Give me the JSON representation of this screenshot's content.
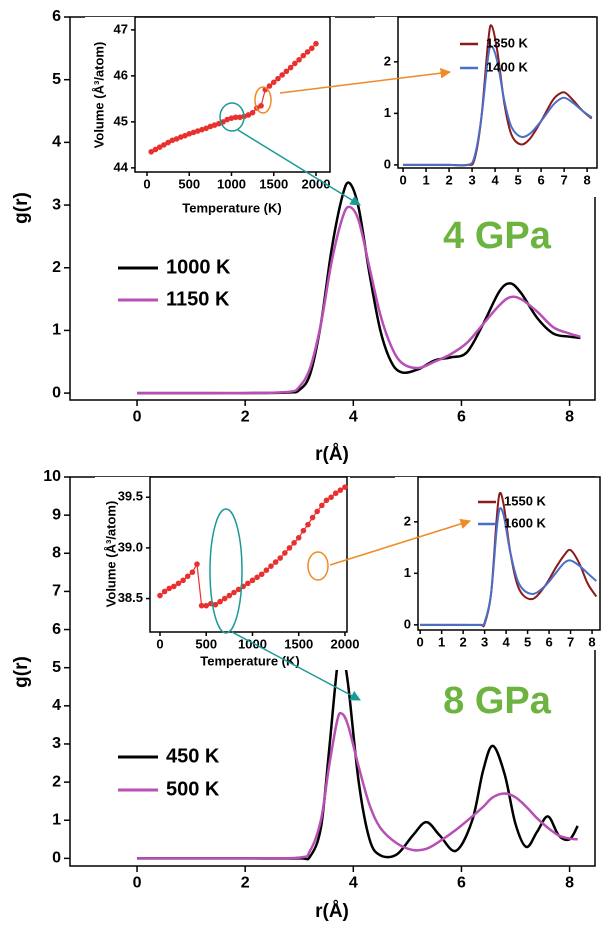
{
  "chart_data": [
    {
      "type": "line",
      "x_label": "r(Å)",
      "y_label": "g(r)",
      "legend": "center left",
      "annotation": "4 GPa",
      "annotation_color": "#6cb33f",
      "x": [
        0,
        1,
        2,
        2.8,
        3.0,
        3.2,
        3.4,
        3.6,
        3.8,
        3.93,
        4.1,
        4.3,
        4.5,
        4.7,
        4.9,
        5.2,
        5.5,
        5.8,
        6.1,
        6.4,
        6.7,
        6.9,
        7.1,
        7.4,
        7.7,
        8.0,
        8.2
      ],
      "series": [
        {
          "name": "1000 K",
          "color": "#000000",
          "values": [
            0,
            0,
            0,
            0.01,
            0.05,
            0.3,
            1.1,
            2.3,
            3.15,
            3.35,
            2.95,
            1.9,
            1.0,
            0.5,
            0.33,
            0.38,
            0.52,
            0.57,
            0.65,
            1.1,
            1.62,
            1.75,
            1.6,
            1.2,
            0.95,
            0.9,
            0.88
          ]
        },
        {
          "name": "1150 K",
          "color": "#b84fb5",
          "values": [
            0,
            0,
            0,
            0.02,
            0.1,
            0.4,
            1.1,
            2.1,
            2.8,
            2.97,
            2.75,
            2.0,
            1.25,
            0.75,
            0.48,
            0.4,
            0.5,
            0.62,
            0.8,
            1.1,
            1.4,
            1.53,
            1.5,
            1.3,
            1.05,
            0.95,
            0.9
          ]
        }
      ],
      "xlim": [
        -1.24,
        8.47
      ],
      "ylim": [
        -0.11,
        6
      ],
      "xticks": [
        0,
        2,
        4,
        6,
        8
      ],
      "yticks": [
        0,
        1,
        2,
        3,
        4,
        5,
        6
      ]
    },
    {
      "type": "line",
      "markers": true,
      "x_label": "Temperature (K)",
      "y_label": "Volume (Å³/atom)",
      "color": "#e8312f",
      "x": [
        50,
        100,
        150,
        200,
        250,
        300,
        350,
        400,
        450,
        500,
        550,
        600,
        650,
        700,
        750,
        800,
        850,
        900,
        950,
        1000,
        1050,
        1100,
        1150,
        1200,
        1250,
        1300,
        1350,
        1400,
        1450,
        1500,
        1550,
        1600,
        1650,
        1700,
        1750,
        1800,
        1850,
        1900,
        1950,
        2000
      ],
      "values": [
        44.35,
        44.4,
        44.45,
        44.5,
        44.55,
        44.6,
        44.63,
        44.67,
        44.7,
        44.74,
        44.77,
        44.8,
        44.83,
        44.86,
        44.9,
        44.93,
        44.96,
        45.0,
        45.05,
        45.08,
        45.1,
        45.1,
        45.12,
        45.15,
        45.2,
        45.3,
        45.35,
        45.7,
        45.78,
        45.86,
        45.94,
        46.02,
        46.1,
        46.18,
        46.27,
        46.35,
        46.44,
        46.52,
        46.6,
        46.7
      ],
      "xlim": [
        -142,
        2166
      ],
      "ylim": [
        43.91,
        47.28
      ],
      "xticks": [
        0,
        500,
        1000,
        1500,
        2000
      ],
      "yticks": [
        44,
        45,
        46,
        47
      ]
    },
    {
      "type": "line",
      "legend": "upper right",
      "x": [
        0,
        1,
        2,
        2.8,
        3.1,
        3.4,
        3.7,
        3.85,
        4.1,
        4.4,
        4.7,
        5.1,
        5.5,
        6.0,
        6.5,
        6.8,
        7.05,
        7.4,
        7.8,
        8.2
      ],
      "series": [
        {
          "name": "1350 K",
          "color": "#8b1a1a",
          "values": [
            0,
            0,
            0,
            0,
            0.1,
            0.9,
            2.4,
            2.7,
            2.2,
            1.2,
            0.6,
            0.4,
            0.5,
            0.85,
            1.25,
            1.38,
            1.4,
            1.25,
            1.05,
            0.9
          ]
        },
        {
          "name": "1400 K",
          "color": "#4a6fc9",
          "values": [
            0,
            0,
            0,
            0,
            0.15,
            0.9,
            2.1,
            2.3,
            2.0,
            1.25,
            0.75,
            0.55,
            0.6,
            0.85,
            1.15,
            1.27,
            1.3,
            1.2,
            1.05,
            0.92
          ]
        }
      ],
      "xlim": [
        -0.22,
        8.43
      ],
      "ylim": [
        -0.06,
        2.87
      ],
      "xticks": [
        0,
        1,
        2,
        3,
        4,
        5,
        6,
        7,
        8
      ],
      "yticks": [
        0,
        1,
        2
      ]
    },
    {
      "type": "line",
      "x_label": "r(Å)",
      "y_label": "g(r)",
      "legend": "center left",
      "annotation": "8 GPa",
      "annotation_color": "#6cb33f",
      "x": [
        0,
        1,
        2,
        3.0,
        3.2,
        3.4,
        3.55,
        3.7,
        3.78,
        3.9,
        4.1,
        4.3,
        4.5,
        4.8,
        5.1,
        5.35,
        5.6,
        5.9,
        6.2,
        6.4,
        6.58,
        6.8,
        7.0,
        7.2,
        7.4,
        7.6,
        7.8,
        8.0,
        8.15
      ],
      "series": [
        {
          "name": "450 K",
          "color": "#000000",
          "values": [
            0,
            0,
            0,
            0,
            0.05,
            0.8,
            2.8,
            5.0,
            5.45,
            4.6,
            2.0,
            0.5,
            0.08,
            0.1,
            0.6,
            0.95,
            0.6,
            0.2,
            1.0,
            2.3,
            2.95,
            2.2,
            0.9,
            0.3,
            0.7,
            1.1,
            0.6,
            0.5,
            0.85
          ]
        },
        {
          "name": "500 K",
          "color": "#b84fb5",
          "values": [
            0,
            0,
            0,
            0.02,
            0.2,
            1.0,
            2.4,
            3.6,
            3.8,
            3.5,
            2.4,
            1.4,
            0.8,
            0.4,
            0.22,
            0.25,
            0.45,
            0.75,
            1.1,
            1.35,
            1.6,
            1.7,
            1.6,
            1.35,
            1.05,
            0.8,
            0.6,
            0.52,
            0.5
          ]
        }
      ],
      "xlim": [
        -1.24,
        8.47
      ],
      "ylim": [
        -0.2,
        10
      ],
      "xticks": [
        0,
        2,
        4,
        6,
        8
      ],
      "yticks": [
        0,
        1,
        2,
        3,
        4,
        5,
        6,
        7,
        8,
        9,
        10
      ]
    },
    {
      "type": "line",
      "markers": true,
      "x_label": "Temperature (K)",
      "y_label": "Volume (Å³/atom)",
      "color": "#e8312f",
      "x": [
        0,
        50,
        100,
        150,
        200,
        250,
        300,
        350,
        400,
        450,
        500,
        550,
        600,
        650,
        700,
        750,
        800,
        850,
        900,
        950,
        1000,
        1050,
        1100,
        1150,
        1200,
        1250,
        1300,
        1350,
        1400,
        1450,
        1500,
        1550,
        1600,
        1650,
        1700,
        1750,
        1800,
        1850,
        1900,
        1950,
        2000
      ],
      "values": [
        38.53,
        38.57,
        38.6,
        38.62,
        38.65,
        38.68,
        38.72,
        38.76,
        38.84,
        38.43,
        38.43,
        38.45,
        38.44,
        38.47,
        38.5,
        38.53,
        38.56,
        38.59,
        38.62,
        38.65,
        38.68,
        38.71,
        38.74,
        38.78,
        38.82,
        38.86,
        38.9,
        38.95,
        39.0,
        39.05,
        39.1,
        39.17,
        39.23,
        39.3,
        39.36,
        39.42,
        39.47,
        39.5,
        39.54,
        39.57,
        39.6
      ],
      "xlim": [
        -108,
        2022
      ],
      "ylim": [
        38.17,
        39.7
      ],
      "xticks": [
        0,
        500,
        1000,
        1500,
        2000
      ],
      "yticks": [
        38.5,
        {
          "value": 39,
          "label": "39.0"
        },
        39.5
      ]
    },
    {
      "type": "line",
      "legend": "upper right",
      "x": [
        0,
        1,
        2,
        2.8,
        3.0,
        3.3,
        3.55,
        3.7,
        3.9,
        4.2,
        4.6,
        5.2,
        5.8,
        6.3,
        6.7,
        7.0,
        7.4,
        7.8,
        8.2
      ],
      "series": [
        {
          "name": "1550 K",
          "color": "#8b1a1a",
          "values": [
            0,
            0,
            0,
            0,
            0.02,
            0.6,
            2.0,
            2.55,
            2.3,
            1.4,
            0.7,
            0.5,
            0.75,
            1.1,
            1.35,
            1.45,
            1.2,
            0.8,
            0.55
          ]
        },
        {
          "name": "1600 K",
          "color": "#4a6fc9",
          "values": [
            0,
            0,
            0,
            0,
            0.05,
            0.6,
            1.8,
            2.25,
            2.1,
            1.4,
            0.8,
            0.6,
            0.75,
            1.0,
            1.2,
            1.25,
            1.15,
            1.0,
            0.85
          ]
        }
      ],
      "xlim": [
        -0.1,
        8.37
      ],
      "ylim": [
        -0.1,
        2.87
      ],
      "xticks": [
        0,
        1,
        2,
        3,
        4,
        5,
        6,
        7,
        8
      ],
      "yticks": [
        0,
        1,
        2
      ]
    }
  ]
}
